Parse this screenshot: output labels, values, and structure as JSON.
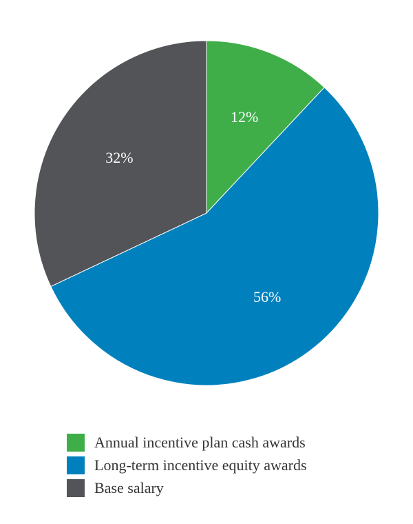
{
  "chart_data": {
    "type": "pie",
    "slices": [
      {
        "label": "Annual incentive plan cash awards",
        "value": 12,
        "display": "12%",
        "color": "#3fae49"
      },
      {
        "label": "Long-term incentive equity awards",
        "value": 56,
        "display": "56%",
        "color": "#0081bd"
      },
      {
        "label": "Base salary",
        "value": 32,
        "display": "32%",
        "color": "#525457"
      }
    ],
    "start": "12 o'clock",
    "direction": "clockwise",
    "legend_position": "bottom-left"
  }
}
